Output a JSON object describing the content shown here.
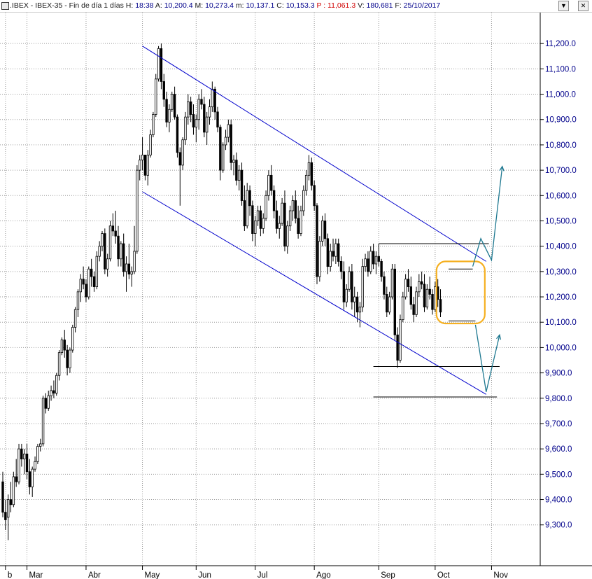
{
  "window": {
    "icon": "chart-window-icon",
    "symbol": ".IBEX",
    "name": "IBEX-35",
    "period": "Fin de día 1 días",
    "stats": [
      {
        "label": "H:",
        "value": "18:38",
        "cls": "val"
      },
      {
        "label": "A:",
        "value": "10,200.4",
        "cls": "val"
      },
      {
        "label": "M:",
        "value": "10,273.4",
        "cls": "val"
      },
      {
        "label": "m:",
        "value": "10,137.1",
        "cls": "val"
      },
      {
        "label": "C:",
        "value": "10,153.3",
        "cls": "val"
      },
      {
        "label": "P :",
        "value": "11,061.3",
        "cls": "pv"
      },
      {
        "label": "V:",
        "value": "180,681",
        "cls": "val"
      },
      {
        "label": "F:",
        "value": "25/10/2017",
        "cls": "val"
      }
    ],
    "buttons": [
      {
        "name": "scroll-down-button",
        "glyph": "▼"
      },
      {
        "name": "close-button",
        "glyph": "✕"
      }
    ]
  },
  "chart_data": {
    "type": "candlestick",
    "y_ticks": [
      "9,300.0",
      "9,400.0",
      "9,500.0",
      "9,600.0",
      "9,700.0",
      "9,800.0",
      "9,900.0",
      "10,000.0",
      "10,100.0",
      "10,200.0",
      "10,300.0",
      "10,400.0",
      "10,500.0",
      "10,600.0",
      "10,700.0",
      "10,800.0",
      "10,900.0",
      "11,000.0",
      "11,100.0",
      "11,200.0"
    ],
    "y_tick_values": [
      9300,
      9400,
      9500,
      9600,
      9700,
      9800,
      9900,
      10000,
      10100,
      10200,
      10300,
      10400,
      10500,
      10600,
      10700,
      10800,
      10900,
      11000,
      11100,
      11200
    ],
    "ylim": [
      9150,
      11300
    ],
    "x_ticks": [
      "b",
      "Mar",
      "Abr",
      "May",
      "Jun",
      "Jul",
      "Ago",
      "Sep",
      "Oct",
      "Nov"
    ],
    "x_tick_days": [
      -8,
      0,
      22,
      43,
      63,
      85,
      107,
      131,
      152,
      173
    ],
    "x_range_days": [
      -9,
      188
    ],
    "colors": {
      "candle": "#000000",
      "up_fill": "#ffffff",
      "channel": "#0000cc",
      "support": "#000000",
      "arrow": "#1e7890",
      "highlight": "#f5b021",
      "axis_text": "#00008b"
    },
    "channel": {
      "upper": [
        [
          43,
          11190
        ],
        [
          171,
          10340
        ]
      ],
      "lower": [
        [
          43,
          10615
        ],
        [
          171,
          9815
        ]
      ]
    },
    "range_lines": [
      {
        "level": 10410,
        "from": 131,
        "to": 172
      },
      {
        "level": 10310,
        "from": 157,
        "to": 166
      },
      {
        "level": 10105,
        "from": 157,
        "to": 167
      },
      {
        "level": 9925,
        "from": 129,
        "to": 176
      },
      {
        "level": 9805,
        "from": 129,
        "to": 175
      }
    ],
    "highlight_box": {
      "from": 152.5,
      "to": 170.5,
      "low": 10095,
      "high": 10340
    },
    "projections": [
      [
        [
          166,
          10320
        ],
        [
          169,
          10430
        ],
        [
          173,
          10345
        ],
        [
          177,
          10715
        ]
      ],
      [
        [
          167,
          10090
        ],
        [
          171,
          9825
        ],
        [
          176,
          10050
        ]
      ]
    ],
    "candles": [
      [
        -9,
        9470,
        9510,
        9330,
        9350
      ],
      [
        -8,
        9350,
        9400,
        9280,
        9320
      ],
      [
        -7,
        9330,
        9420,
        9240,
        9400
      ],
      [
        -6,
        9400,
        9470,
        9350,
        9380
      ],
      [
        -5,
        9380,
        9510,
        9370,
        9490
      ],
      [
        -4,
        9490,
        9560,
        9450,
        9470
      ],
      [
        -3,
        9470,
        9620,
        9460,
        9600
      ],
      [
        -2,
        9600,
        9620,
        9530,
        9560
      ],
      [
        -1,
        9560,
        9600,
        9500,
        9580
      ],
      [
        0,
        9580,
        9620,
        9480,
        9510
      ],
      [
        1,
        9510,
        9560,
        9420,
        9450
      ],
      [
        2,
        9450,
        9530,
        9410,
        9520
      ],
      [
        3,
        9520,
        9570,
        9510,
        9550
      ],
      [
        4,
        9550,
        9620,
        9540,
        9610
      ],
      [
        5,
        9610,
        9640,
        9590,
        9620
      ],
      [
        6,
        9620,
        9810,
        9610,
        9800
      ],
      [
        7,
        9800,
        9820,
        9740,
        9760
      ],
      [
        8,
        9760,
        9830,
        9750,
        9810
      ],
      [
        9,
        9810,
        9850,
        9790,
        9830
      ],
      [
        10,
        9830,
        9870,
        9800,
        9820
      ],
      [
        11,
        9820,
        9900,
        9810,
        9890
      ],
      [
        12,
        9890,
        9990,
        9870,
        9980
      ],
      [
        13,
        9980,
        10040,
        9970,
        10030
      ],
      [
        14,
        10030,
        10070,
        9960,
        9990
      ],
      [
        15,
        9990,
        10010,
        9890,
        9920
      ],
      [
        16,
        9920,
        10000,
        9900,
        9990
      ],
      [
        17,
        9990,
        10090,
        9980,
        10080
      ],
      [
        18,
        10080,
        10160,
        10060,
        10150
      ],
      [
        19,
        10150,
        10230,
        10120,
        10220
      ],
      [
        20,
        10220,
        10290,
        10180,
        10270
      ],
      [
        21,
        10270,
        10320,
        10230,
        10250
      ],
      [
        22,
        10250,
        10270,
        10180,
        10200
      ],
      [
        23,
        10200,
        10320,
        10190,
        10310
      ],
      [
        24,
        10310,
        10350,
        10240,
        10280
      ],
      [
        25,
        10280,
        10300,
        10220,
        10240
      ],
      [
        26,
        10240,
        10380,
        10230,
        10360
      ],
      [
        27,
        10360,
        10420,
        10340,
        10400
      ],
      [
        28,
        10400,
        10460,
        10380,
        10450
      ],
      [
        29,
        10450,
        10470,
        10290,
        10310
      ],
      [
        30,
        10310,
        10370,
        10280,
        10350
      ],
      [
        31,
        10350,
        10500,
        10340,
        10480
      ],
      [
        32,
        10480,
        10530,
        10440,
        10460
      ],
      [
        33,
        10460,
        10540,
        10410,
        10440
      ],
      [
        34,
        10440,
        10480,
        10320,
        10350
      ],
      [
        35,
        10350,
        10420,
        10320,
        10410
      ],
      [
        36,
        10410,
        10450,
        10280,
        10300
      ],
      [
        37,
        10300,
        10360,
        10220,
        10330
      ],
      [
        38,
        10330,
        10410,
        10270,
        10290
      ],
      [
        39,
        10290,
        10320,
        10240,
        10300
      ],
      [
        40,
        10300,
        10480,
        10290,
        10380
      ],
      [
        41,
        10380,
        10720,
        10370,
        10700
      ],
      [
        42,
        10700,
        10760,
        10660,
        10740
      ],
      [
        43,
        10740,
        10830,
        10700,
        10760
      ],
      [
        44,
        10760,
        10760,
        10660,
        10680
      ],
      [
        45,
        10680,
        10780,
        10640,
        10760
      ],
      [
        46,
        10760,
        10860,
        10750,
        10840
      ],
      [
        47,
        10840,
        10930,
        10830,
        10920
      ],
      [
        48,
        10920,
        11080,
        10910,
        11060
      ],
      [
        49,
        11060,
        11190,
        11050,
        11180
      ],
      [
        50,
        11180,
        11200,
        11020,
        11050
      ],
      [
        51,
        11050,
        11080,
        10950,
        10980
      ],
      [
        52,
        10980,
        11010,
        10870,
        10890
      ],
      [
        53,
        10890,
        10960,
        10850,
        10940
      ],
      [
        54,
        10940,
        11010,
        10930,
        11000
      ],
      [
        55,
        11000,
        11030,
        10900,
        10910
      ],
      [
        56,
        10910,
        10920,
        10750,
        10770
      ],
      [
        57,
        10770,
        10790,
        10560,
        10720
      ],
      [
        58,
        10720,
        10830,
        10700,
        10820
      ],
      [
        59,
        10820,
        10930,
        10800,
        10910
      ],
      [
        60,
        10910,
        11000,
        10880,
        10970
      ],
      [
        61,
        10970,
        10990,
        10890,
        10920
      ],
      [
        62,
        10920,
        10960,
        10840,
        10870
      ],
      [
        63,
        10870,
        10920,
        10810,
        10900
      ],
      [
        64,
        10900,
        11000,
        10860,
        10980
      ],
      [
        65,
        10980,
        11020,
        10940,
        10960
      ],
      [
        66,
        10960,
        10990,
        10830,
        10850
      ],
      [
        67,
        10850,
        10930,
        10800,
        10910
      ],
      [
        68,
        10910,
        10980,
        10880,
        10950
      ],
      [
        69,
        10950,
        11050,
        10930,
        11020
      ],
      [
        70,
        11020,
        11030,
        10900,
        10930
      ],
      [
        71,
        10930,
        10950,
        10850,
        10870
      ],
      [
        72,
        10870,
        10880,
        10660,
        10700
      ],
      [
        73,
        10700,
        10810,
        10690,
        10800
      ],
      [
        74,
        10800,
        10860,
        10780,
        10830
      ],
      [
        75,
        10830,
        10900,
        10810,
        10880
      ],
      [
        76,
        10880,
        10900,
        10700,
        10730
      ],
      [
        77,
        10730,
        10760,
        10680,
        10740
      ],
      [
        78,
        10740,
        10770,
        10640,
        10660
      ],
      [
        79,
        10660,
        10720,
        10620,
        10700
      ],
      [
        80,
        10700,
        10730,
        10560,
        10580
      ],
      [
        81,
        10580,
        10640,
        10460,
        10480
      ],
      [
        82,
        10480,
        10650,
        10470,
        10620
      ],
      [
        83,
        10620,
        10640,
        10520,
        10560
      ],
      [
        84,
        10560,
        10580,
        10420,
        10450
      ],
      [
        85,
        10450,
        10520,
        10400,
        10500
      ],
      [
        86,
        10500,
        10560,
        10480,
        10540
      ],
      [
        87,
        10540,
        10560,
        10440,
        10470
      ],
      [
        88,
        10470,
        10530,
        10450,
        10510
      ],
      [
        89,
        10510,
        10620,
        10500,
        10600
      ],
      [
        90,
        10600,
        10700,
        10580,
        10680
      ],
      [
        91,
        10680,
        10720,
        10600,
        10620
      ],
      [
        92,
        10620,
        10640,
        10510,
        10540
      ],
      [
        93,
        10540,
        10580,
        10450,
        10470
      ],
      [
        94,
        10470,
        10520,
        10430,
        10490
      ],
      [
        95,
        10490,
        10590,
        10480,
        10570
      ],
      [
        96,
        10570,
        10620,
        10380,
        10400
      ],
      [
        97,
        10400,
        10500,
        10370,
        10480
      ],
      [
        98,
        10480,
        10560,
        10460,
        10540
      ],
      [
        99,
        10540,
        10600,
        10500,
        10580
      ],
      [
        100,
        10580,
        10620,
        10490,
        10510
      ],
      [
        101,
        10510,
        10560,
        10430,
        10450
      ],
      [
        102,
        10450,
        10560,
        10440,
        10540
      ],
      [
        103,
        10540,
        10640,
        10520,
        10620
      ],
      [
        104,
        10620,
        10700,
        10600,
        10680
      ],
      [
        105,
        10680,
        10760,
        10660,
        10730
      ],
      [
        106,
        10730,
        10750,
        10620,
        10640
      ],
      [
        107,
        10640,
        10660,
        10540,
        10560
      ],
      [
        108,
        10560,
        10570,
        10250,
        10280
      ],
      [
        109,
        10280,
        10440,
        10260,
        10420
      ],
      [
        110,
        10420,
        10520,
        10400,
        10500
      ],
      [
        111,
        10500,
        10530,
        10400,
        10430
      ],
      [
        112,
        10430,
        10450,
        10290,
        10320
      ],
      [
        113,
        10320,
        10410,
        10300,
        10380
      ],
      [
        114,
        10380,
        10430,
        10340,
        10360
      ],
      [
        115,
        10360,
        10430,
        10330,
        10410
      ],
      [
        116,
        10410,
        10430,
        10320,
        10340
      ],
      [
        117,
        10340,
        10360,
        10270,
        10300
      ],
      [
        118,
        10300,
        10340,
        10150,
        10180
      ],
      [
        119,
        10180,
        10250,
        10160,
        10230
      ],
      [
        120,
        10230,
        10320,
        10220,
        10300
      ],
      [
        121,
        10300,
        10330,
        10150,
        10180
      ],
      [
        122,
        10180,
        10240,
        10120,
        10200
      ],
      [
        123,
        10200,
        10220,
        10100,
        10140
      ],
      [
        124,
        10140,
        10180,
        10080,
        10160
      ],
      [
        125,
        10160,
        10350,
        10140,
        10320
      ],
      [
        126,
        10320,
        10370,
        10300,
        10350
      ],
      [
        127,
        10350,
        10380,
        10280,
        10300
      ],
      [
        128,
        10300,
        10400,
        10290,
        10380
      ],
      [
        129,
        10380,
        10410,
        10310,
        10330
      ],
      [
        130,
        10330,
        10380,
        10290,
        10360
      ],
      [
        131,
        10360,
        10410,
        10320,
        10340
      ],
      [
        132,
        10340,
        10350,
        10260,
        10280
      ],
      [
        133,
        10280,
        10300,
        10190,
        10210
      ],
      [
        134,
        10210,
        10240,
        10120,
        10140
      ],
      [
        135,
        10140,
        10220,
        10130,
        10200
      ],
      [
        136,
        10200,
        10330,
        10190,
        10310
      ],
      [
        137,
        10310,
        10330,
        10030,
        10050
      ],
      [
        138,
        10050,
        10080,
        9920,
        9950
      ],
      [
        139,
        9950,
        10130,
        9940,
        10110
      ],
      [
        140,
        10110,
        10220,
        10100,
        10200
      ],
      [
        141,
        10200,
        10290,
        10190,
        10270
      ],
      [
        142,
        10270,
        10310,
        10220,
        10240
      ],
      [
        143,
        10240,
        10280,
        10150,
        10170
      ],
      [
        144,
        10170,
        10200,
        10100,
        10130
      ],
      [
        145,
        10130,
        10240,
        10120,
        10220
      ],
      [
        146,
        10220,
        10290,
        10200,
        10260
      ],
      [
        147,
        10260,
        10300,
        10230,
        10250
      ],
      [
        148,
        10250,
        10290,
        10140,
        10160
      ],
      [
        149,
        10160,
        10250,
        10150,
        10230
      ],
      [
        150,
        10230,
        10280,
        10190,
        10210
      ],
      [
        151,
        10210,
        10230,
        10130,
        10150
      ],
      [
        152,
        10150,
        10260,
        10140,
        10240
      ],
      [
        153,
        10240,
        10270,
        10160,
        10190
      ],
      [
        154,
        10190,
        10230,
        10120,
        10140
      ]
    ]
  }
}
